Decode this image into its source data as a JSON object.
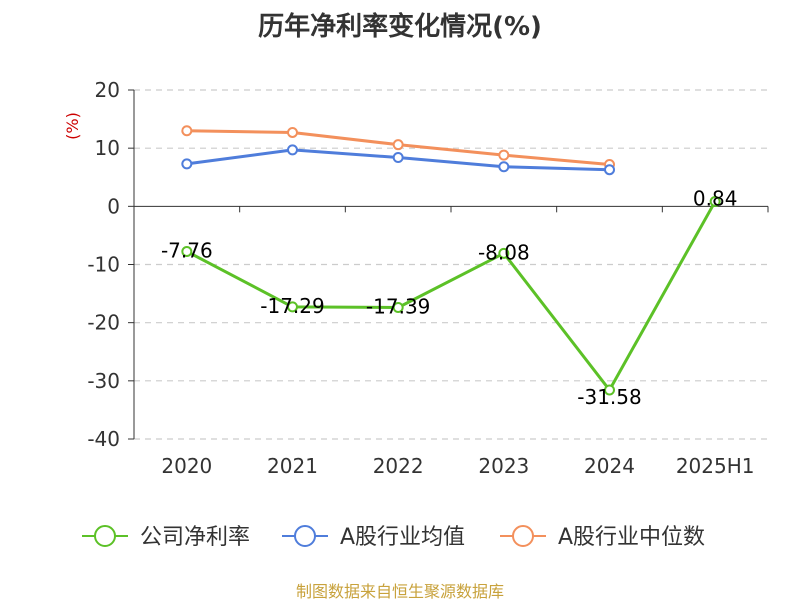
{
  "title": "历年净利率变化情况(%)",
  "watermark": "制图数据来自恒生聚源数据库",
  "colors": {
    "company": "#5cc127",
    "industry_avg": "#4f7ddb",
    "industry_median": "#f3905c",
    "axis": "#333333",
    "grid": "#cccccc",
    "unit_label": "#cc0000"
  },
  "chart_data": {
    "type": "line",
    "ylabel": "(%)",
    "ylim": [
      -40,
      20
    ],
    "yticks": [
      20,
      10,
      0,
      -10,
      -20,
      -30,
      -40
    ],
    "grid": true,
    "legend_position": "bottom",
    "categories": [
      "2020",
      "2021",
      "2022",
      "2023",
      "2024",
      "2025H1"
    ],
    "series": [
      {
        "name": "公司净利率",
        "key": "company",
        "values": [
          -7.76,
          -17.29,
          -17.39,
          -8.08,
          -31.58,
          0.84
        ],
        "show_labels": true
      },
      {
        "name": "A股行业均值",
        "key": "industry_avg",
        "values": [
          7.3,
          9.7,
          8.4,
          6.8,
          6.3,
          null
        ],
        "show_labels": false
      },
      {
        "name": "A股行业中位数",
        "key": "industry_median",
        "values": [
          13.0,
          12.7,
          10.6,
          8.8,
          7.2,
          null
        ],
        "show_labels": false
      }
    ]
  }
}
